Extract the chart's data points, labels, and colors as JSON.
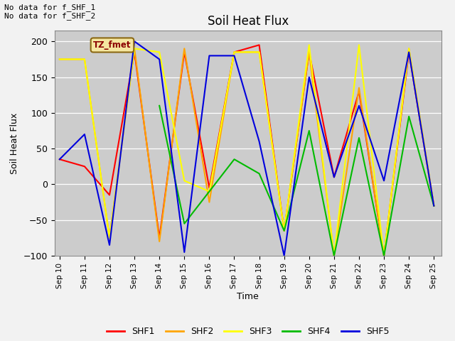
{
  "title": "Soil Heat Flux",
  "xlabel": "Time",
  "ylabel": "Soil Heat Flux",
  "text_top_left": "No data for f_SHF_1\nNo data for f_SHF_2",
  "annotation_box": "TZ_fmet",
  "ylim": [
    -100,
    215
  ],
  "yticks": [
    -100,
    -50,
    0,
    50,
    100,
    150,
    200
  ],
  "series": {
    "SHF1": {
      "color": "#ff0000"
    },
    "SHF2": {
      "color": "#ffa500"
    },
    "SHF3": {
      "color": "#ffff00"
    },
    "SHF4": {
      "color": "#00bb00"
    },
    "SHF5": {
      "color": "#0000dd"
    }
  },
  "x_dates": [
    10,
    11,
    12,
    13,
    14,
    15,
    16,
    17,
    18,
    19,
    20,
    21,
    22,
    23,
    24,
    25
  ],
  "SHF1": [
    35,
    25,
    -15,
    185,
    -75,
    185,
    -5,
    185,
    195,
    -65,
    185,
    10,
    130,
    -100,
    185,
    -30
  ],
  "SHF2": [
    175,
    175,
    -75,
    190,
    -80,
    190,
    -25,
    185,
    185,
    -65,
    185,
    -100,
    135,
    -100,
    190,
    -30
  ],
  "SHF3": [
    175,
    175,
    -75,
    190,
    185,
    5,
    -10,
    185,
    185,
    -65,
    195,
    -100,
    195,
    -100,
    190,
    -30
  ],
  "SHF4": [
    null,
    null,
    null,
    null,
    110,
    -55,
    -10,
    35,
    15,
    -65,
    75,
    -100,
    65,
    -100,
    95,
    -30
  ],
  "SHF5": [
    35,
    70,
    -85,
    200,
    175,
    -95,
    180,
    180,
    60,
    -100,
    150,
    10,
    110,
    5,
    185,
    -30
  ]
}
